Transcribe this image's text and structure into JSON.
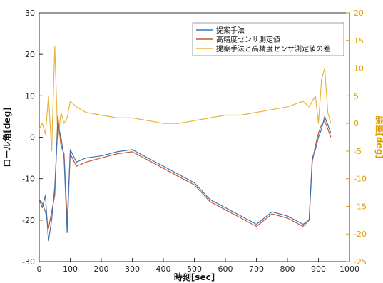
{
  "chart_data": {
    "type": "line",
    "title": "",
    "xlabel": "時刻[sec]",
    "ylabel": "ロール角[deg]",
    "y2label": "誤差[deg]",
    "xlim": [
      0,
      1000
    ],
    "ylim": [
      -30,
      30
    ],
    "y2lim": [
      -25,
      20
    ],
    "xticks": [
      0,
      100,
      200,
      300,
      400,
      500,
      600,
      700,
      800,
      900,
      1000
    ],
    "yticks": [
      -30,
      -20,
      -10,
      0,
      10,
      20,
      30
    ],
    "y2ticks": [
      -25,
      -20,
      -15,
      -10,
      -5,
      0,
      5,
      10,
      15,
      20
    ],
    "grid": false,
    "legend_position": "top-right",
    "series": [
      {
        "name": "提案手法",
        "axis": "left",
        "color": "#3b75b5",
        "x": [
          0,
          10,
          20,
          30,
          40,
          50,
          60,
          70,
          80,
          90,
          100,
          120,
          150,
          200,
          250,
          300,
          350,
          400,
          450,
          500,
          550,
          600,
          650,
          700,
          750,
          800,
          850,
          870,
          880,
          890,
          900,
          910,
          920,
          930,
          940
        ],
        "y": [
          -15,
          -17,
          -14,
          -25,
          -20,
          -12,
          3,
          0,
          -5,
          -23,
          -3,
          -6,
          -5,
          -4.5,
          -3.5,
          -3,
          -5,
          -7,
          -9,
          -11,
          -15,
          -17,
          -19,
          -21,
          -18,
          -19,
          -21,
          -20,
          -5,
          -3,
          0,
          2,
          5,
          3,
          1
        ]
      },
      {
        "name": "高精度センサ測定値",
        "axis": "left",
        "color": "#c8552a",
        "x": [
          0,
          10,
          20,
          30,
          40,
          50,
          60,
          70,
          80,
          90,
          100,
          120,
          150,
          200,
          250,
          300,
          350,
          400,
          450,
          500,
          550,
          600,
          650,
          700,
          750,
          800,
          850,
          870,
          880,
          890,
          900,
          910,
          920,
          930,
          940
        ],
        "y": [
          -15,
          -16,
          -18,
          -22,
          -18,
          -14,
          5,
          -2,
          -4,
          -20,
          -4,
          -7,
          -6,
          -5,
          -4,
          -3.5,
          -5.5,
          -7.5,
          -9.5,
          -11.5,
          -15.5,
          -17.5,
          -19.5,
          -21.5,
          -18.5,
          -19.5,
          -21.5,
          -20,
          -6,
          -2,
          1,
          3,
          4,
          2,
          0
        ]
      },
      {
        "name": "提案手法と高精度センサ測定値の差",
        "axis": "right",
        "color": "#e8b53a",
        "x": [
          0,
          10,
          20,
          30,
          40,
          50,
          60,
          70,
          80,
          90,
          100,
          120,
          150,
          200,
          250,
          300,
          350,
          400,
          450,
          500,
          550,
          600,
          650,
          700,
          750,
          800,
          850,
          870,
          880,
          890,
          900,
          910,
          920,
          930,
          940
        ],
        "y": [
          -1,
          0,
          -2,
          5,
          -5,
          14,
          -3,
          2,
          0,
          1,
          4,
          3,
          2,
          1.5,
          1,
          1,
          0.5,
          0,
          0,
          0.5,
          1,
          1.5,
          1.5,
          2,
          2.5,
          3,
          4,
          3,
          4,
          5,
          0,
          8,
          10,
          2,
          0
        ]
      }
    ]
  }
}
